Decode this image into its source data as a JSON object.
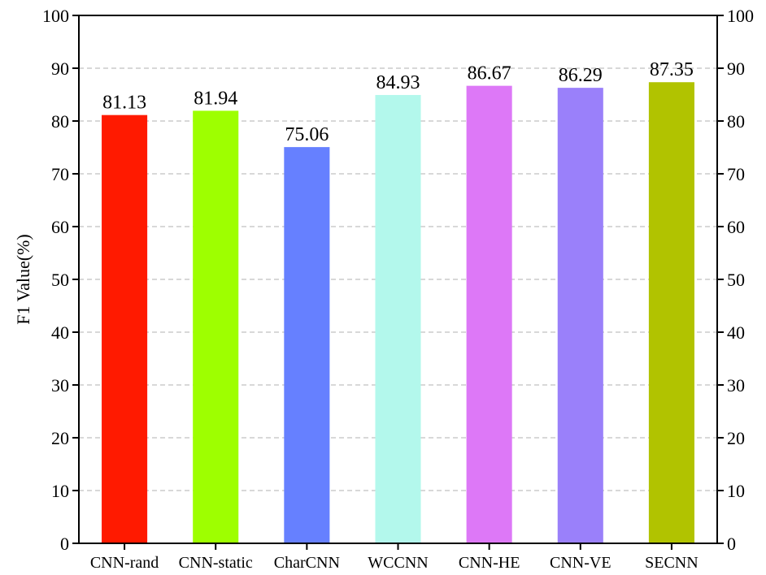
{
  "chart_data": {
    "type": "bar",
    "title": "",
    "xlabel": "",
    "ylabel": "F1 Value(%)",
    "ylim": [
      0,
      100
    ],
    "yticks": [
      0,
      10,
      20,
      30,
      40,
      50,
      60,
      70,
      80,
      90,
      100
    ],
    "grid": true,
    "categories": [
      "CNN-rand",
      "CNN-static",
      "CharCNN",
      "WCCNN",
      "CNN-HE",
      "CNN-VE",
      "SECNN"
    ],
    "values": [
      81.13,
      81.94,
      75.06,
      84.93,
      86.67,
      86.29,
      87.35
    ],
    "value_labels": [
      "81.13",
      "81.94",
      "75.06",
      "84.93",
      "86.67",
      "86.29",
      "87.35"
    ],
    "colors": [
      "#ff1a00",
      "#9eff00",
      "#6680ff",
      "#b3f8ec",
      "#dd78f7",
      "#9a80fa",
      "#b1c300"
    ]
  }
}
